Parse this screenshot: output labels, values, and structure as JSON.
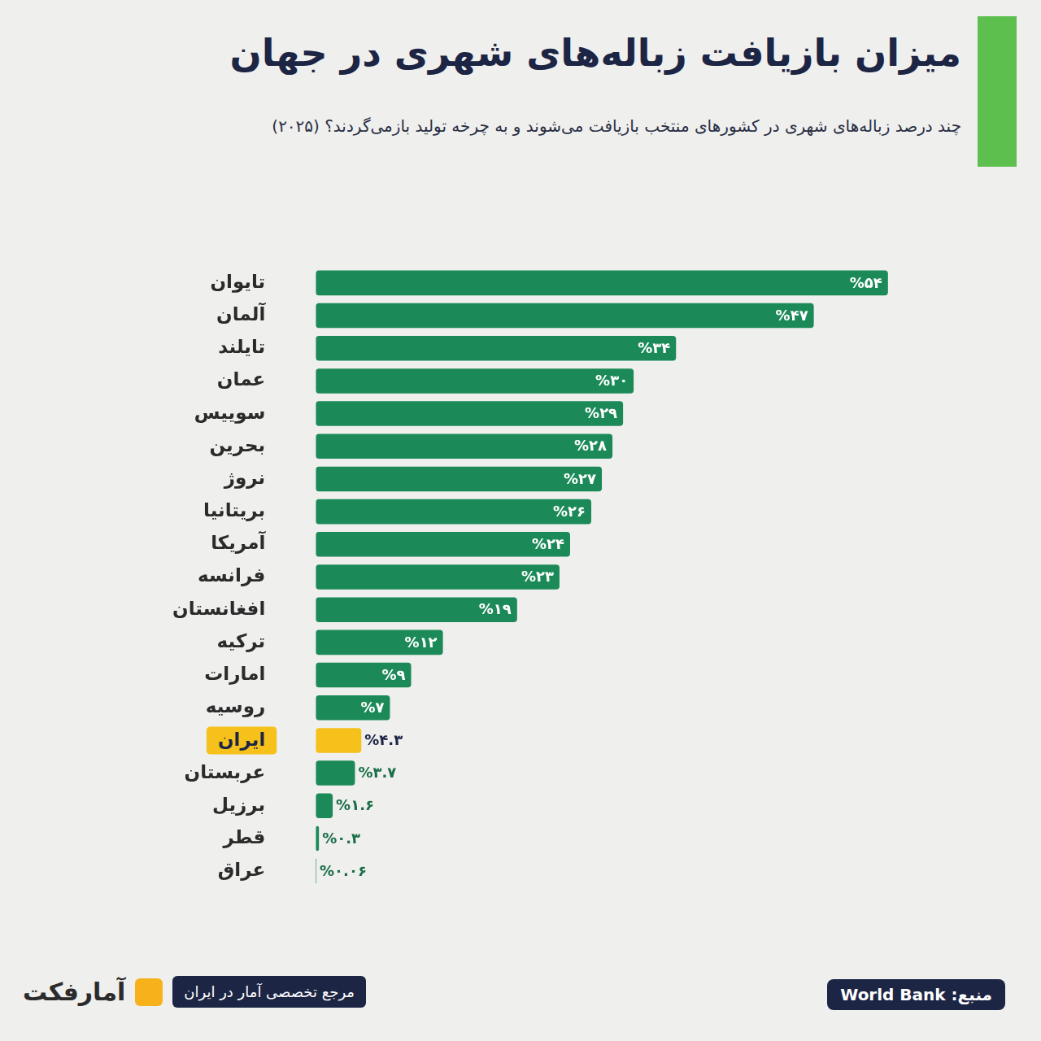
{
  "chart_data": {
    "type": "bar",
    "orientation": "horizontal",
    "title": "میزان بازیافت زباله‌های شهری در جهان",
    "subtitle": "چند درصد زباله‌های شهری در کشورهای منتخب بازیافت می‌شوند و به چرخه تولید بازمی‌گردند؟ (۲۰۲۵)",
    "categories": [
      "تایوان",
      "آلمان",
      "تایلند",
      "عمان",
      "سوییس",
      "بحرین",
      "نروژ",
      "بریتانیا",
      "آمریکا",
      "فرانسه",
      "افغانستان",
      "ترکیه",
      "امارات",
      "روسیه",
      "ایران",
      "عربستان",
      "برزیل",
      "قطر",
      "عراق"
    ],
    "values": [
      54,
      47,
      34,
      30,
      29,
      28,
      27,
      26,
      24,
      23,
      19,
      12,
      9,
      7,
      4.3,
      3.7,
      1.6,
      0.3,
      0.06
    ],
    "value_labels": [
      "%۵۴",
      "%۴۷",
      "%۳۴",
      "%۳۰",
      "%۲۹",
      "%۲۸",
      "%۲۷",
      "%۲۶",
      "%۲۴",
      "%۲۳",
      "%۱۹",
      "%۱۲",
      "%۹",
      "%۷",
      "%۴.۳",
      "%۳.۷",
      "%۱.۶",
      "%۰.۳",
      "%۰.۰۶"
    ],
    "color": "#1b8a58",
    "colors": [
      "#1b8a58",
      "#1b8a58",
      "#1b8a58",
      "#1b8a58",
      "#1b8a58",
      "#1b8a58",
      "#1b8a58",
      "#1b8a58",
      "#1b8a58",
      "#1b8a58",
      "#1b8a58",
      "#1b8a58",
      "#1b8a58",
      "#1b8a58",
      "#f5c11a",
      "#1b8a58",
      "#1b8a58",
      "#1b8a58",
      "#1b8a58"
    ],
    "xlim": [
      0,
      60
    ],
    "grid": false,
    "legend": false,
    "data_labels": true,
    "tick_labels": "y",
    "source": "منبع: World Bank",
    "brand": "آمارفکت",
    "tagline": "مرجع تخصصی آمار در ایران"
  }
}
